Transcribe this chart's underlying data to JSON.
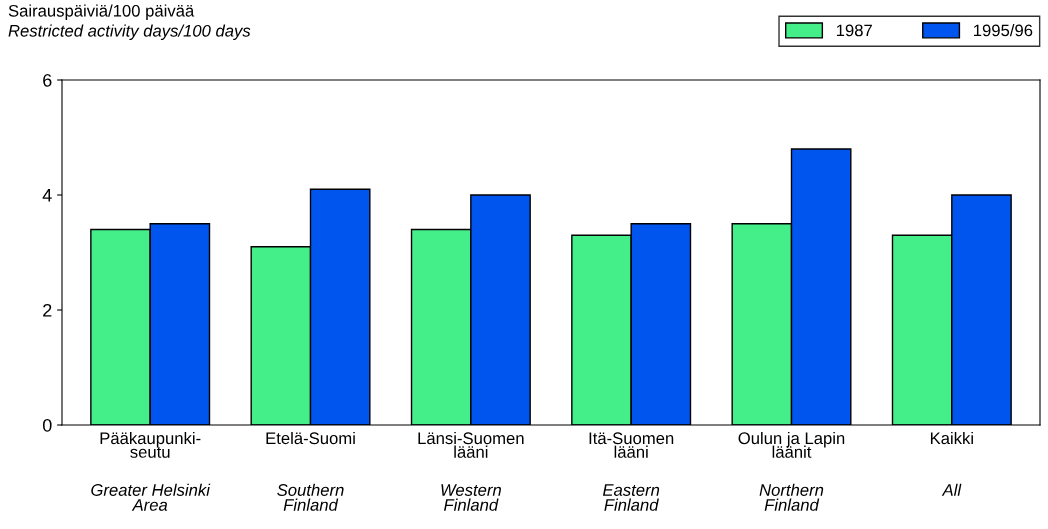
{
  "chart_data": {
    "type": "bar",
    "ylabel": "Sairauspäiviä/100 päivää\nRestricted activity days/100 days",
    "categories": [
      "Pääkaupunki-\nseutu\n\nGreater Helsinki\nArea",
      "Etelä-Suomi\n\n\nSouthern\nFinland",
      "Länsi-Suomen\nlääni\n\nWestern\nFinland",
      "Itä-Suomen\nlääni\n\nEastern\nFinland",
      "Oulun ja Lapin\nläänit\n\nNorthern\nFinland",
      "Kaikki\n\n\nAll"
    ],
    "series": [
      {
        "name": "1987",
        "color": "#44ee88",
        "values": [
          3.4,
          3.1,
          3.4,
          3.3,
          3.5,
          3.3
        ]
      },
      {
        "name": "1995/96",
        "color": "#0055ee",
        "values": [
          3.5,
          4.1,
          4.0,
          3.5,
          4.8,
          4.0
        ]
      }
    ],
    "ylim": [
      0,
      6
    ],
    "yticks": [
      0,
      2,
      4,
      6
    ],
    "grid": false,
    "legend": "top right"
  }
}
